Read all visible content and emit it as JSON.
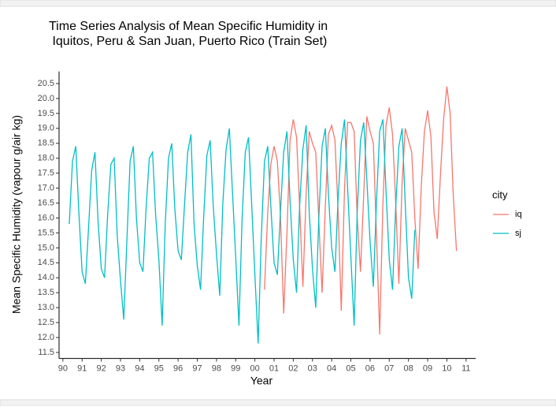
{
  "chart_data": {
    "type": "line",
    "title": [
      "Time Series Analysis of Mean Specific Humidity in",
      " Iquitos, Peru & San Juan, Puerto Rico (Train Set)"
    ],
    "x_label": "Year",
    "y_label": "Mean Specific Humidity (vapour g/air kg)",
    "legend_title": "city",
    "x": [
      1990.33,
      1990.5,
      1990.67,
      1990.83,
      1991.0,
      1991.17,
      1991.33,
      1991.5,
      1991.67,
      1991.83,
      1992.0,
      1992.17,
      1992.33,
      1992.5,
      1992.67,
      1992.83,
      1993.0,
      1993.17,
      1993.33,
      1993.5,
      1993.67,
      1993.83,
      1994.0,
      1994.17,
      1994.33,
      1994.5,
      1994.67,
      1994.83,
      1995.0,
      1995.17,
      1995.33,
      1995.5,
      1995.67,
      1995.83,
      1996.0,
      1996.17,
      1996.33,
      1996.5,
      1996.67,
      1996.83,
      1997.0,
      1997.17,
      1997.33,
      1997.5,
      1997.67,
      1997.83,
      1998.0,
      1998.17,
      1998.33,
      1998.5,
      1998.67,
      1998.83,
      1999.0,
      1999.17,
      1999.33,
      1999.5,
      1999.67,
      1999.83,
      2000.0,
      2000.17,
      2000.33,
      2000.5,
      2000.67,
      2000.83,
      2001.0,
      2001.17,
      2001.33,
      2001.5,
      2001.67,
      2001.83,
      2002.0,
      2002.17,
      2002.33,
      2002.5,
      2002.67,
      2002.83,
      2003.0,
      2003.17,
      2003.33,
      2003.5,
      2003.67,
      2003.83,
      2004.0,
      2004.17,
      2004.33,
      2004.5,
      2004.67,
      2004.83,
      2005.0,
      2005.17,
      2005.33,
      2005.5,
      2005.67,
      2005.83,
      2006.0,
      2006.17,
      2006.33,
      2006.5,
      2006.67,
      2006.83,
      2007.0,
      2007.17,
      2007.33,
      2007.5,
      2007.67,
      2007.83,
      2008.0,
      2008.17,
      2008.33,
      2008.5,
      2008.67,
      2008.83,
      2009.0,
      2009.17,
      2009.33,
      2009.5,
      2009.67,
      2009.83,
      2010.0,
      2010.17,
      2010.33,
      2010.5
    ],
    "series": [
      {
        "name": "iq",
        "color": "#F8766D",
        "values": [
          null,
          null,
          null,
          null,
          null,
          null,
          null,
          null,
          null,
          null,
          null,
          null,
          null,
          null,
          null,
          null,
          null,
          null,
          null,
          null,
          null,
          null,
          null,
          null,
          null,
          null,
          null,
          null,
          null,
          null,
          null,
          null,
          null,
          null,
          null,
          null,
          null,
          null,
          null,
          null,
          null,
          null,
          null,
          null,
          null,
          null,
          null,
          null,
          null,
          null,
          null,
          null,
          null,
          null,
          null,
          null,
          null,
          null,
          null,
          null,
          null,
          13.6,
          16.2,
          17.8,
          18.4,
          17.9,
          16.1,
          12.8,
          15.5,
          18.6,
          19.3,
          18.7,
          16.4,
          13.7,
          16.8,
          18.9,
          18.5,
          18.2,
          15.9,
          13.5,
          16.4,
          18.8,
          19.1,
          18.6,
          16.3,
          12.9,
          17.0,
          19.2,
          19.2,
          18.9,
          16.0,
          14.2,
          16.8,
          19.4,
          18.9,
          18.5,
          15.5,
          12.1,
          16.5,
          19.1,
          19.7,
          18.8,
          16.6,
          13.8,
          17.2,
          19.0,
          18.6,
          18.2,
          16.0,
          14.3,
          17.1,
          18.9,
          19.6,
          18.7,
          16.2,
          15.3,
          17.5,
          19.3,
          20.4,
          19.5,
          16.8,
          14.9
        ]
      },
      {
        "name": "sj",
        "color": "#00BFC4",
        "values": [
          15.8,
          17.9,
          18.4,
          16.2,
          14.2,
          13.8,
          15.6,
          17.6,
          18.2,
          15.9,
          14.3,
          14.0,
          16.1,
          17.8,
          18.0,
          15.4,
          13.9,
          12.6,
          15.2,
          17.9,
          18.4,
          16.0,
          14.5,
          14.2,
          16.3,
          18.0,
          18.2,
          16.1,
          14.6,
          12.4,
          15.8,
          18.0,
          18.5,
          16.3,
          14.9,
          14.6,
          16.4,
          18.2,
          18.8,
          15.8,
          14.4,
          13.6,
          16.0,
          18.1,
          18.6,
          16.4,
          14.8,
          13.4,
          16.5,
          18.3,
          19.0,
          16.9,
          14.7,
          12.4,
          15.9,
          18.2,
          18.7,
          16.5,
          14.1,
          11.8,
          15.3,
          17.9,
          18.4,
          16.4,
          14.5,
          14.1,
          16.2,
          18.2,
          18.9,
          16.6,
          14.6,
          13.5,
          16.4,
          18.3,
          19.1,
          16.2,
          14.3,
          13.0,
          16.0,
          18.4,
          19.0,
          16.8,
          15.0,
          14.2,
          16.6,
          18.5,
          19.3,
          17.0,
          14.7,
          12.4,
          16.2,
          18.6,
          19.2,
          17.3,
          15.2,
          13.7,
          16.5,
          18.9,
          19.3,
          16.9,
          14.6,
          13.6,
          16.3,
          18.4,
          19.0,
          16.5,
          14.0,
          13.3,
          15.6,
          null,
          null,
          null,
          null,
          null,
          null,
          null,
          null,
          null,
          null,
          null,
          null,
          null
        ]
      }
    ],
    "xlim": [
      1989.8,
      2011.5
    ],
    "xticks": [
      {
        "value": 1990,
        "label": "90"
      },
      {
        "value": 1991,
        "label": "91"
      },
      {
        "value": 1992,
        "label": "92"
      },
      {
        "value": 1993,
        "label": "93"
      },
      {
        "value": 1994,
        "label": "94"
      },
      {
        "value": 1995,
        "label": "95"
      },
      {
        "value": 1996,
        "label": "96"
      },
      {
        "value": 1997,
        "label": "97"
      },
      {
        "value": 1998,
        "label": "98"
      },
      {
        "value": 1999,
        "label": "99"
      },
      {
        "value": 2000,
        "label": "00"
      },
      {
        "value": 2001,
        "label": "01"
      },
      {
        "value": 2002,
        "label": "02"
      },
      {
        "value": 2003,
        "label": "03"
      },
      {
        "value": 2004,
        "label": "04"
      },
      {
        "value": 2005,
        "label": "05"
      },
      {
        "value": 2006,
        "label": "06"
      },
      {
        "value": 2007,
        "label": "07"
      },
      {
        "value": 2008,
        "label": "08"
      },
      {
        "value": 2009,
        "label": "09"
      },
      {
        "value": 2010,
        "label": "10"
      },
      {
        "value": 2011,
        "label": "11"
      }
    ],
    "ylim": [
      11.3,
      20.8
    ],
    "yticks": [
      11.5,
      {
        "value": 12,
        "label": "12.0"
      },
      12.5,
      {
        "value": 13,
        "label": "13.0"
      },
      13.5,
      {
        "value": 14,
        "label": "14.0"
      },
      14.5,
      {
        "value": 15,
        "label": "15.0"
      },
      15.5,
      {
        "value": 16,
        "label": "16.0"
      },
      16.5,
      {
        "value": 17,
        "label": "17.0"
      },
      17.5,
      {
        "value": 18,
        "label": "18.0"
      },
      18.5,
      {
        "value": 19,
        "label": "19.0"
      },
      19.5,
      {
        "value": 20,
        "label": "20.0"
      },
      20.5
    ],
    "grid": false
  }
}
